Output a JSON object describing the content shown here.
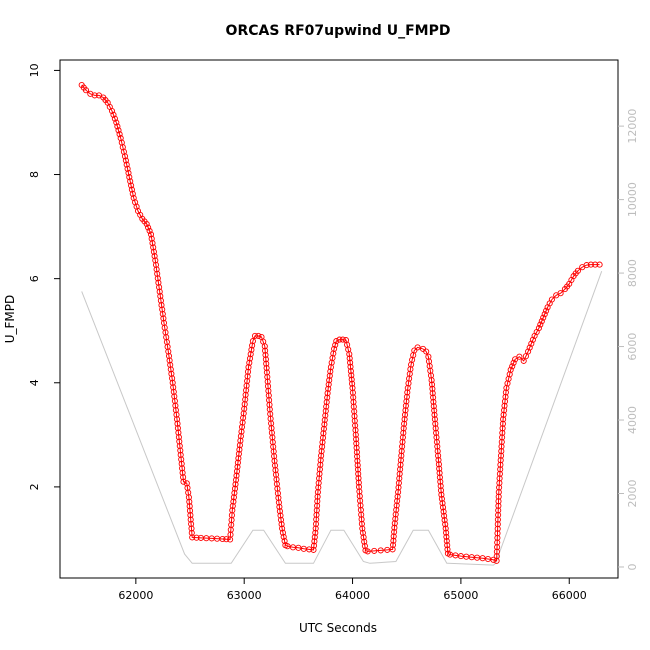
{
  "chart_data": {
    "type": "scatter",
    "title": "ORCAS RF07upwind U_FMPD",
    "xlabel": "UTC Seconds",
    "ylabel": "U_FMPD",
    "xlim": [
      61300,
      66450
    ],
    "ylim": [
      0.25,
      10.2
    ],
    "xticks": [
      62000,
      63000,
      64000,
      65000,
      66000
    ],
    "yticks": [
      2,
      4,
      6,
      8,
      10
    ],
    "y2lim": [
      -300,
      13800
    ],
    "y2ticks": [
      0,
      2000,
      4000,
      6000,
      8000,
      10000,
      12000
    ],
    "grid": false,
    "colors": {
      "primary": "#ff0000",
      "secondary": "#c8c8c8",
      "right_axis": "#bdbdbd"
    },
    "series": [
      {
        "role": "primary",
        "style": "open-circles-connected",
        "x": [
          61500,
          61540,
          61580,
          61620,
          61660,
          61700,
          61740,
          61780,
          61820,
          61860,
          61900,
          61940,
          61980,
          62020,
          62060,
          62100,
          62140,
          62180,
          62220,
          62260,
          62300,
          62340,
          62380,
          62410,
          62440,
          62470,
          62490,
          62520,
          62600,
          62700,
          62800,
          62870,
          62890,
          62920,
          62960,
          63000,
          63040,
          63080,
          63100,
          63130,
          63160,
          63190,
          63210,
          63240,
          63280,
          63320,
          63350,
          63380,
          63400,
          63450,
          63500,
          63550,
          63600,
          63640,
          63660,
          63680,
          63710,
          63740,
          63770,
          63800,
          63830,
          63850,
          63880,
          63910,
          63940,
          63970,
          64000,
          64030,
          64060,
          64090,
          64120,
          64140,
          64200,
          64260,
          64320,
          64370,
          64390,
          64420,
          64450,
          64480,
          64510,
          64540,
          64570,
          64600,
          64650,
          64680,
          64700,
          64730,
          64760,
          64790,
          64820,
          64860,
          64880,
          64900,
          65000,
          65100,
          65200,
          65300,
          65330,
          65350,
          65370,
          65390,
          65420,
          65460,
          65500,
          65540,
          65580,
          65620,
          65650,
          65680,
          65720,
          65760,
          65800,
          65840,
          65880,
          65920,
          65960,
          66000,
          66040,
          66080,
          66120,
          66160,
          66200,
          66240,
          66280
        ],
        "y": [
          9.72,
          9.62,
          9.55,
          9.52,
          9.52,
          9.48,
          9.38,
          9.22,
          9.0,
          8.7,
          8.35,
          7.95,
          7.55,
          7.3,
          7.15,
          7.05,
          6.85,
          6.35,
          5.75,
          5.15,
          4.6,
          4.0,
          3.3,
          2.7,
          2.1,
          2.07,
          1.8,
          1.03,
          1.02,
          1.01,
          1.0,
          0.99,
          1.55,
          2.05,
          2.8,
          3.5,
          4.3,
          4.8,
          4.9,
          4.9,
          4.88,
          4.7,
          4.2,
          3.4,
          2.5,
          1.7,
          1.2,
          0.88,
          0.86,
          0.84,
          0.83,
          0.81,
          0.8,
          0.79,
          1.2,
          1.9,
          2.6,
          3.2,
          3.8,
          4.3,
          4.65,
          4.8,
          4.83,
          4.83,
          4.82,
          4.55,
          3.9,
          3.0,
          2.0,
          1.2,
          0.78,
          0.76,
          0.77,
          0.78,
          0.79,
          0.8,
          1.3,
          1.9,
          2.6,
          3.3,
          3.9,
          4.35,
          4.62,
          4.68,
          4.65,
          4.6,
          4.5,
          4.05,
          3.3,
          2.6,
          1.85,
          1.2,
          0.72,
          0.7,
          0.67,
          0.65,
          0.63,
          0.6,
          0.58,
          1.9,
          2.6,
          3.3,
          3.9,
          4.25,
          4.45,
          4.5,
          4.42,
          4.6,
          4.75,
          4.9,
          5.05,
          5.25,
          5.45,
          5.6,
          5.68,
          5.72,
          5.8,
          5.9,
          6.05,
          6.15,
          6.22,
          6.26,
          6.27,
          6.27,
          6.27
        ]
      },
      {
        "role": "secondary",
        "style": "line",
        "x": [
          61500,
          62450,
          62520,
          62880,
          63080,
          63180,
          63380,
          63640,
          63800,
          63920,
          64100,
          64160,
          64400,
          64560,
          64700,
          64870,
          64880,
          65300,
          65320,
          66300
        ],
        "y": [
          7500,
          350,
          100,
          100,
          1000,
          1000,
          100,
          100,
          1000,
          1000,
          150,
          100,
          150,
          1000,
          1000,
          100,
          100,
          50,
          100,
          8050
        ]
      }
    ]
  }
}
